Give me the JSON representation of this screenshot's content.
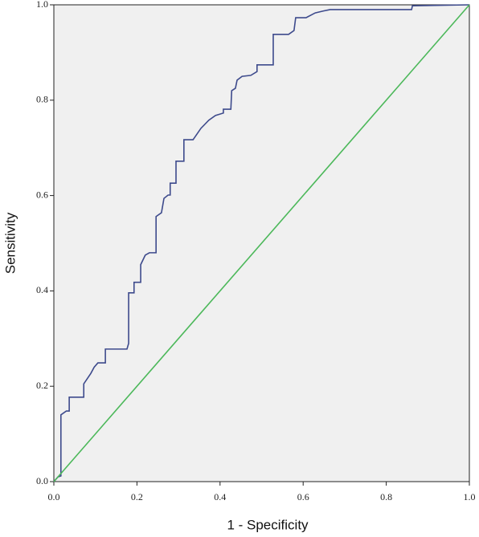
{
  "chart_data": {
    "type": "line",
    "x_label": "1 - Specificity",
    "y_label": "Sensitivity",
    "xlim": [
      0,
      1
    ],
    "ylim": [
      0,
      1
    ],
    "xticks": [
      {
        "value": 0,
        "label": "0.0"
      },
      {
        "value": 0.2,
        "label": "0.2"
      },
      {
        "value": 0.4,
        "label": "0.4"
      },
      {
        "value": 0.6,
        "label": "0.6"
      },
      {
        "value": 0.8,
        "label": "0.8"
      },
      {
        "value": 1,
        "label": "1.0"
      }
    ],
    "yticks": [
      {
        "value": 0,
        "label": "0.0"
      },
      {
        "value": 0.2,
        "label": "0.2"
      },
      {
        "value": 0.4,
        "label": "0.4"
      },
      {
        "value": 0.6,
        "label": "0.6"
      },
      {
        "value": 0.8,
        "label": "0.8"
      },
      {
        "value": 1,
        "label": "1.0"
      }
    ],
    "background": "#f0f0f0",
    "series": [
      {
        "color": "#3d4a8c",
        "x": [
          0,
          0.01,
          0.017,
          0.017,
          0.03,
          0.037,
          0.037,
          0.072,
          0.072,
          0.089,
          0.097,
          0.106,
          0.124,
          0.124,
          0.176,
          0.18,
          0.18,
          0.193,
          0.193,
          0.209,
          0.209,
          0.22,
          0.23,
          0.246,
          0.246,
          0.259,
          0.265,
          0.275,
          0.28,
          0.28,
          0.294,
          0.294,
          0.313,
          0.313,
          0.335,
          0.354,
          0.373,
          0.389,
          0.408,
          0.408,
          0.426,
          0.428,
          0.437,
          0.441,
          0.453,
          0.474,
          0.489,
          0.489,
          0.528,
          0.528,
          0.565,
          0.578,
          0.582,
          0.607,
          0.629,
          0.648,
          0.665,
          0.861,
          0.863,
          1
        ],
        "values": [
          0,
          0.01,
          0.012,
          0.14,
          0.148,
          0.148,
          0.177,
          0.177,
          0.205,
          0.227,
          0.24,
          0.249,
          0.249,
          0.278,
          0.278,
          0.29,
          0.396,
          0.396,
          0.418,
          0.418,
          0.455,
          0.475,
          0.48,
          0.48,
          0.556,
          0.564,
          0.594,
          0.601,
          0.601,
          0.626,
          0.626,
          0.672,
          0.672,
          0.717,
          0.717,
          0.741,
          0.758,
          0.768,
          0.773,
          0.781,
          0.781,
          0.82,
          0.825,
          0.842,
          0.85,
          0.852,
          0.86,
          0.874,
          0.874,
          0.938,
          0.938,
          0.946,
          0.973,
          0.973,
          0.983,
          0.987,
          0.99,
          0.99,
          0.998,
          1
        ]
      },
      {
        "color": "#4cb85a",
        "x": [
          0,
          1
        ],
        "values": [
          0,
          1
        ]
      }
    ]
  }
}
